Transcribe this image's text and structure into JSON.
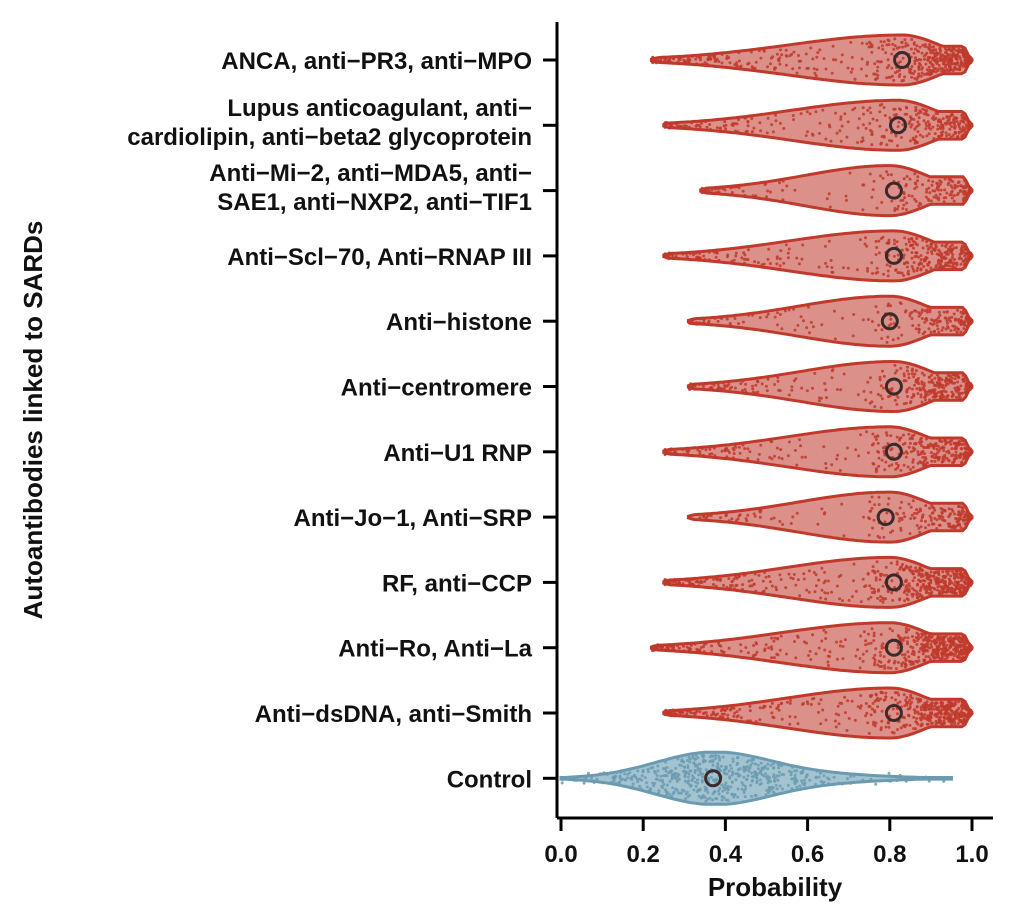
{
  "colors": {
    "sard": "#c0392b",
    "sard_fill": "#d98a84",
    "control": "#6b9bb0",
    "control_fill": "#9fc0cf",
    "median_marker": "#3b2a2a"
  },
  "chart_data": {
    "type": "violin",
    "xlabel": "Probability",
    "ylabel": "Autoantibodies linked to SARDs",
    "xlim": [
      0.0,
      1.0
    ],
    "xticks": [
      "0.0",
      "0.2",
      "0.4",
      "0.6",
      "0.8",
      "1.0"
    ],
    "groups": [
      {
        "label_lines": [
          "ANCA, anti−PR3, anti−MPO"
        ],
        "group": "sard",
        "min": 0.22,
        "max": 1.0,
        "median": 0.83,
        "mode": 0.83,
        "density": "high"
      },
      {
        "label_lines": [
          "Lupus anticoagulant, anti−",
          "cardiolipin, anti−beta2 glycoprotein"
        ],
        "group": "sard",
        "min": 0.25,
        "max": 1.0,
        "median": 0.82,
        "mode": 0.82,
        "density": "medium"
      },
      {
        "label_lines": [
          "Anti−Mi−2, anti−MDA5, anti−",
          "SAE1, anti−NXP2, anti−TIF1"
        ],
        "group": "sard",
        "min": 0.34,
        "max": 1.0,
        "median": 0.81,
        "mode": 0.8,
        "density": "low"
      },
      {
        "label_lines": [
          "Anti−Scl−70, Anti−RNAP III"
        ],
        "group": "sard",
        "min": 0.25,
        "max": 1.0,
        "median": 0.81,
        "mode": 0.81,
        "density": "medium"
      },
      {
        "label_lines": [
          "Anti−histone"
        ],
        "group": "sard",
        "min": 0.31,
        "max": 1.0,
        "median": 0.8,
        "mode": 0.8,
        "density": "low"
      },
      {
        "label_lines": [
          "Anti−centromere"
        ],
        "group": "sard",
        "min": 0.31,
        "max": 1.0,
        "median": 0.81,
        "mode": 0.81,
        "density": "medium"
      },
      {
        "label_lines": [
          "Anti−U1 RNP"
        ],
        "group": "sard",
        "min": 0.25,
        "max": 1.0,
        "median": 0.81,
        "mode": 0.8,
        "density": "medium"
      },
      {
        "label_lines": [
          "Anti−Jo−1, Anti−SRP"
        ],
        "group": "sard",
        "min": 0.31,
        "max": 1.0,
        "median": 0.79,
        "mode": 0.8,
        "density": "low"
      },
      {
        "label_lines": [
          "RF, anti−CCP"
        ],
        "group": "sard",
        "min": 0.25,
        "max": 1.0,
        "median": 0.81,
        "mode": 0.8,
        "density": "high"
      },
      {
        "label_lines": [
          "Anti−Ro, Anti−La"
        ],
        "group": "sard",
        "min": 0.22,
        "max": 1.0,
        "median": 0.81,
        "mode": 0.8,
        "density": "high"
      },
      {
        "label_lines": [
          "Anti−dsDNA, anti−Smith"
        ],
        "group": "sard",
        "min": 0.25,
        "max": 1.0,
        "median": 0.81,
        "mode": 0.8,
        "density": "high"
      },
      {
        "label_lines": [
          "Control"
        ],
        "group": "control",
        "min": 0.0,
        "max": 0.95,
        "median": 0.37,
        "mode": 0.37,
        "density": "high"
      }
    ]
  }
}
